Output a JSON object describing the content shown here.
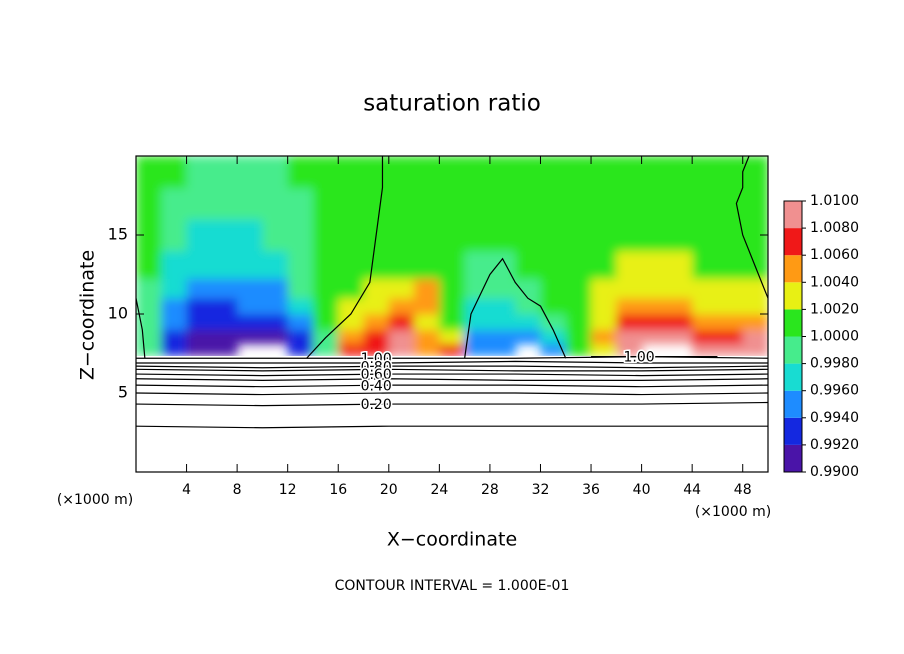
{
  "chart_data": {
    "type": "contour",
    "title": "saturation ratio",
    "xlabel": "X−coordinate",
    "ylabel": "Z−coordinate",
    "xunit": "(×1000 m)",
    "yunit": "(×1000 m)",
    "footnote": "CONTOUR INTERVAL = 1.000E-01",
    "xlim": [
      0,
      50
    ],
    "ylim": [
      0,
      20
    ],
    "xticks": [
      4,
      8,
      12,
      16,
      20,
      24,
      28,
      32,
      36,
      40,
      44,
      48
    ],
    "yticks": [
      5,
      10,
      15
    ],
    "field": {
      "x": [
        1,
        3,
        5,
        7,
        9,
        11,
        13,
        15,
        17,
        19,
        21,
        23,
        25,
        27,
        29,
        31,
        33,
        35,
        37,
        39,
        41,
        43,
        45,
        47,
        49
      ],
      "z": [
        7.75,
        8.5,
        9.5,
        10.5,
        11.5,
        13,
        15,
        17,
        19
      ],
      "values": [
        [
          0.9985,
          0.993,
          0.991,
          0.991,
          null,
          null,
          0.993,
          0.9985,
          1.007,
          1.007,
          1.008,
          1.005,
          1.007,
          0.995,
          0.994,
          null,
          0.995,
          1.001,
          1.003,
          1.008,
          null,
          null,
          1.008,
          1.009,
          1.008
        ],
        [
          0.999,
          0.993,
          0.991,
          0.991,
          0.991,
          0.991,
          0.992,
          0.999,
          1.005,
          1.007,
          1.008,
          1.004,
          1.003,
          0.995,
          0.994,
          0.994,
          0.996,
          1.001,
          1.004,
          1.008,
          1.009,
          1.008,
          1.007,
          1.006,
          1.008
        ],
        [
          0.999,
          0.994,
          0.992,
          0.992,
          0.992,
          0.992,
          0.995,
          1.0,
          1.003,
          1.004,
          1.007,
          1.003,
          1.001,
          0.996,
          0.996,
          0.997,
          0.999,
          1.001,
          1.003,
          1.006,
          1.007,
          1.006,
          1.004,
          1.004,
          1.005
        ],
        [
          0.999,
          0.995,
          0.993,
          0.993,
          0.994,
          0.994,
          0.997,
          1.0,
          1.002,
          1.003,
          1.004,
          1.005,
          1.001,
          0.997,
          0.997,
          0.998,
          1.001,
          1.001,
          1.002,
          1.004,
          1.005,
          1.004,
          1.003,
          1.002,
          1.003
        ],
        [
          0.9995,
          0.996,
          0.995,
          0.995,
          0.995,
          0.995,
          0.998,
          1.0,
          1.001,
          1.002,
          1.003,
          1.004,
          1.001,
          0.998,
          0.998,
          0.999,
          1.001,
          1.001,
          1.002,
          1.003,
          1.003,
          1.003,
          1.002,
          1.002,
          1.002
        ],
        [
          1.0,
          0.997,
          0.996,
          0.996,
          0.996,
          0.997,
          0.999,
          1.0,
          1.001,
          1.001,
          1.001,
          1.001,
          1.001,
          0.999,
          0.999,
          1.0,
          1.001,
          1.001,
          1.001,
          1.002,
          1.002,
          1.002,
          1.001,
          1.001,
          1.001
        ],
        [
          1.0,
          0.998,
          0.997,
          0.997,
          0.997,
          0.998,
          0.999,
          1.0,
          1.0,
          1.001,
          1.001,
          1.001,
          1.001,
          1.001,
          1.001,
          1.001,
          1.001,
          1.001,
          1.001,
          1.001,
          1.001,
          1.001,
          1.001,
          1.001,
          1.001
        ],
        [
          1.0,
          0.999,
          0.998,
          0.998,
          0.999,
          0.999,
          0.999,
          1.0,
          1.0,
          1.001,
          1.001,
          1.001,
          1.001,
          1.001,
          1.001,
          1.001,
          1.001,
          1.001,
          1.001,
          1.001,
          1.001,
          1.001,
          1.001,
          1.001,
          1.0
        ],
        [
          1.0,
          1.0,
          0.999,
          0.999,
          0.999,
          0.999,
          1.0,
          1.0,
          1.0,
          1.001,
          1.001,
          1.001,
          1.001,
          1.001,
          1.001,
          1.001,
          1.001,
          1.001,
          1.001,
          1.001,
          1.001,
          1.001,
          1.001,
          1.0,
          1.0
        ]
      ]
    },
    "colorbar": {
      "ticks": [
        {
          "value": 0.99,
          "label": "0.9900"
        },
        {
          "value": 0.992,
          "label": "0.9920"
        },
        {
          "value": 0.994,
          "label": "0.9940"
        },
        {
          "value": 0.996,
          "label": "0.9960"
        },
        {
          "value": 0.998,
          "label": "0.9980"
        },
        {
          "value": 1.0,
          "label": "1.0000"
        },
        {
          "value": 1.002,
          "label": "1.0020"
        },
        {
          "value": 1.004,
          "label": "1.0040"
        },
        {
          "value": 1.006,
          "label": "1.0060"
        },
        {
          "value": 1.008,
          "label": "1.0080"
        },
        {
          "value": 1.01,
          "label": "1.0100"
        }
      ],
      "colors": [
        "#4a14a8",
        "#1428e0",
        "#1e8cff",
        "#18dcd2",
        "#46ec8c",
        "#2ae61e",
        "#e8f014",
        "#ff9a14",
        "#f01818",
        "#f09090"
      ]
    },
    "contours": [
      {
        "x": [
          0,
          10,
          20,
          30,
          40,
          50
        ],
        "z": [
          7.2,
          7.2,
          7.2,
          7.2,
          7.3,
          7.2
        ],
        "label": "1.00"
      },
      {
        "x": [
          36,
          38,
          40,
          42,
          44,
          46
        ],
        "z": [
          7.3,
          7.3,
          7.3,
          7.3,
          7.3,
          7.3
        ],
        "label": "1.00"
      },
      {
        "x": [
          0,
          10,
          20,
          30,
          40,
          50
        ],
        "z": [
          6.9,
          6.9,
          6.9,
          7.0,
          6.9,
          6.9
        ]
      },
      {
        "x": [
          0,
          10,
          20,
          30,
          40,
          50
        ],
        "z": [
          6.7,
          6.6,
          6.7,
          6.7,
          6.6,
          6.7
        ],
        "label": "0.80"
      },
      {
        "x": [
          0,
          10,
          20,
          30,
          40,
          50
        ],
        "z": [
          6.5,
          6.4,
          6.5,
          6.4,
          6.4,
          6.5
        ]
      },
      {
        "x": [
          0,
          10,
          20,
          30,
          40,
          50
        ],
        "z": [
          6.2,
          6.1,
          6.2,
          6.2,
          6.1,
          6.2
        ],
        "label": "0.60"
      },
      {
        "x": [
          0,
          10,
          20,
          30,
          40,
          50
        ],
        "z": [
          5.9,
          5.8,
          5.9,
          5.8,
          5.8,
          5.9
        ]
      },
      {
        "x": [
          0,
          10,
          20,
          30,
          40,
          50
        ],
        "z": [
          5.5,
          5.4,
          5.5,
          5.5,
          5.4,
          5.5
        ],
        "label": "0.40"
      },
      {
        "x": [
          0,
          10,
          20,
          30,
          40,
          50
        ],
        "z": [
          5.0,
          4.9,
          5.0,
          5.0,
          4.9,
          5.0
        ]
      },
      {
        "x": [
          0,
          10,
          20,
          30,
          40,
          50
        ],
        "z": [
          4.3,
          4.2,
          4.3,
          4.3,
          4.3,
          4.4
        ],
        "label": "0.20"
      },
      {
        "x": [
          0,
          10,
          20,
          30,
          40,
          50
        ],
        "z": [
          2.9,
          2.8,
          2.9,
          2.9,
          2.9,
          2.9
        ]
      },
      {
        "x": [
          13.5,
          15,
          17,
          18.5,
          19,
          19.5,
          19.5
        ],
        "z": [
          7.2,
          8.5,
          10,
          12,
          15,
          18,
          20
        ]
      },
      {
        "x": [
          26,
          26.5,
          28,
          29,
          30,
          31,
          32,
          33,
          34
        ],
        "z": [
          7.2,
          10,
          12.5,
          13.5,
          12,
          11,
          10.5,
          9,
          7.2
        ]
      },
      {
        "x": [
          50,
          49,
          48,
          47.5,
          48,
          48,
          48.5
        ],
        "z": [
          11,
          13,
          15,
          17,
          18,
          19,
          20
        ]
      },
      {
        "x": [
          0,
          0.5,
          0.7
        ],
        "z": [
          11,
          9,
          7.2
        ]
      }
    ]
  }
}
